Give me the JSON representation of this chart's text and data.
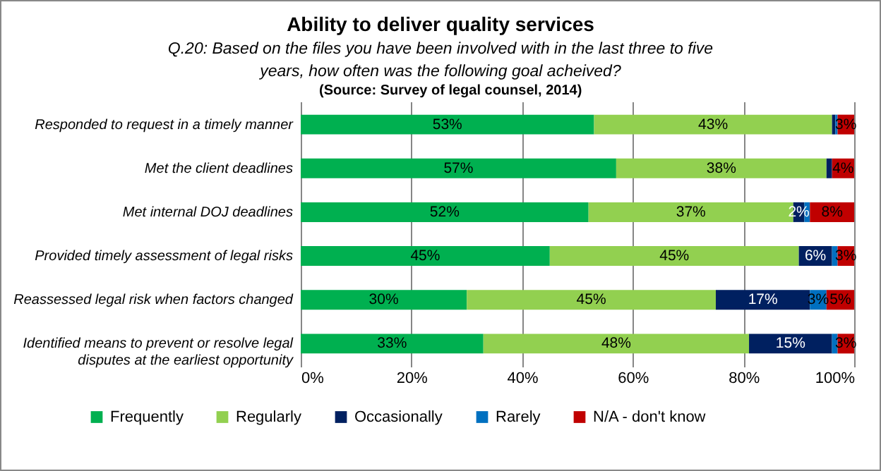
{
  "chart_data": {
    "type": "bar",
    "orientation": "horizontal",
    "stacked": true,
    "title": "Ability to deliver quality services",
    "subtitle": "Q.20: Based on the files you have been involved with in the last three to five years, how often was the following goal acheived?",
    "annotations": [
      "(Source: Survey of legal counsel, 2014)"
    ],
    "categories": [
      "Responded to request in a timely manner",
      "Met the client deadlines",
      "Met internal DOJ deadlines",
      "Provided timely assessment of legal risks",
      "Reassessed legal risk when factors changed",
      "Identified means to prevent or resolve legal disputes at the earliest opportunity"
    ],
    "series": [
      {
        "name": "Frequently",
        "color": "#00b050",
        "values": [
          53,
          57,
          52,
          45,
          30,
          33
        ],
        "value_labels": [
          "53%",
          "57%",
          "52%",
          "45%",
          "30%",
          "33%"
        ]
      },
      {
        "name": "Regularly",
        "color": "#92d050",
        "values": [
          43,
          38,
          37,
          45,
          45,
          48
        ],
        "value_labels": [
          "43%",
          "38%",
          "37%",
          "45%",
          "45%",
          "48%"
        ]
      },
      {
        "name": "Occasionally",
        "color": "#002060",
        "values": [
          0.6,
          1,
          2,
          6,
          17,
          15
        ],
        "value_labels": [
          null,
          null,
          "2%",
          "6%",
          "17%",
          "15%"
        ]
      },
      {
        "name": "Rarely",
        "color": "#0070c0",
        "values": [
          0.4,
          0,
          1,
          1,
          3,
          1
        ],
        "value_labels": [
          null,
          null,
          null,
          null,
          "3%",
          null
        ]
      },
      {
        "name": "N/A - don't know",
        "color": "#c00000",
        "values": [
          3,
          4,
          8,
          3,
          5,
          3
        ],
        "value_labels": [
          "3%",
          "4%",
          "8%",
          "3%",
          "5%",
          "3%"
        ]
      }
    ],
    "xlim": [
      0,
      100
    ],
    "xticks": [
      {
        "value": 0,
        "label": "0%"
      },
      {
        "value": 20,
        "label": "20%"
      },
      {
        "value": 40,
        "label": "40%"
      },
      {
        "value": 60,
        "label": "60%"
      },
      {
        "value": 80,
        "label": "80%"
      },
      {
        "value": 100,
        "label": "100%"
      }
    ],
    "grid": "x",
    "legend": "bottom"
  }
}
